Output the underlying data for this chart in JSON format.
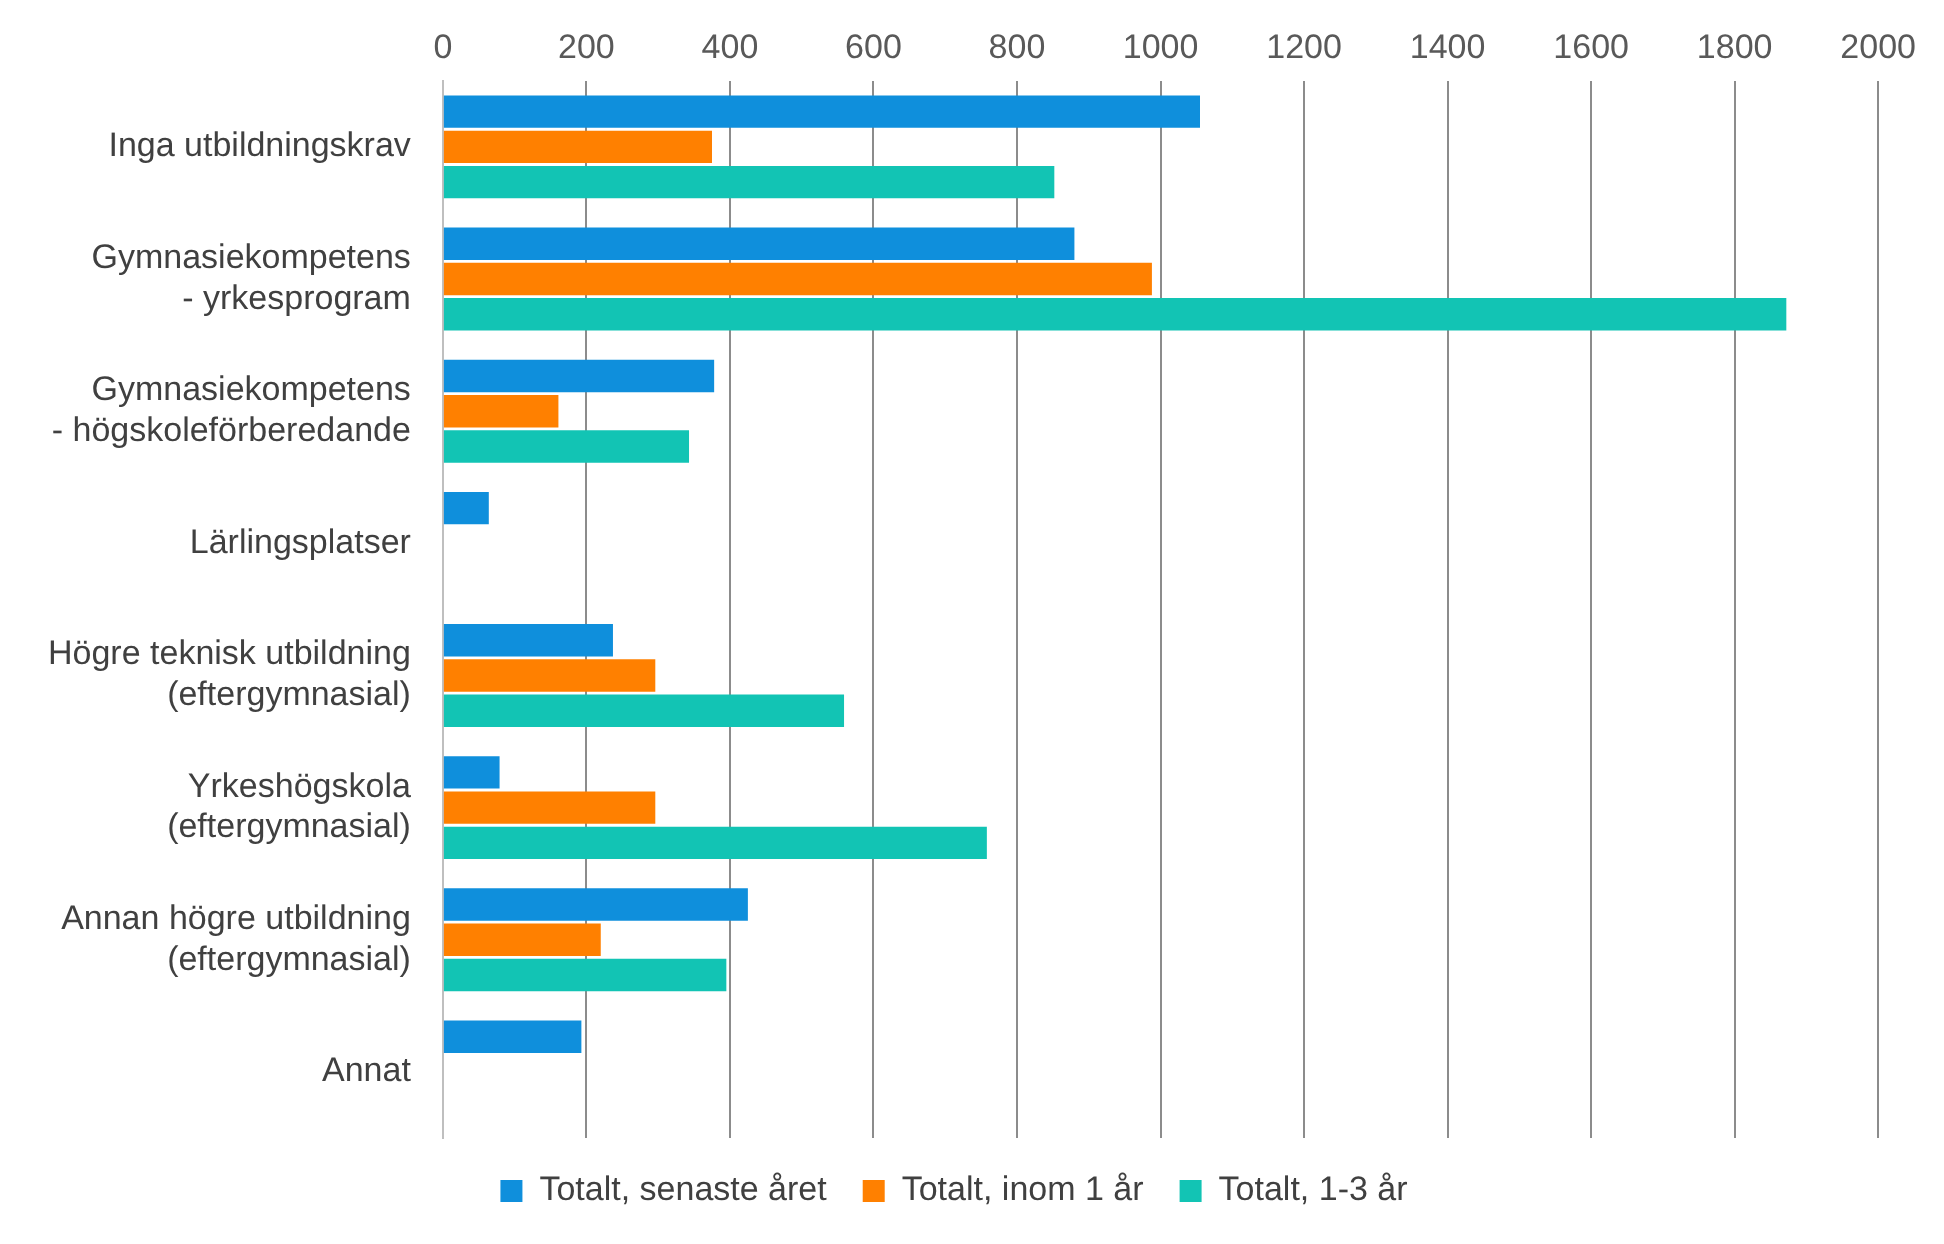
{
  "chart_data": {
    "type": "bar",
    "orientation": "horizontal",
    "categories": [
      "Inga utbildningskrav",
      "Gymnasiekompetens\n- yrkesprogram",
      "Gymnasiekompetens\n- högskoleförberedande",
      "Lärlingsplatser",
      "Högre teknisk utbildning\n(eftergymnasial)",
      "Yrkeshögskola\n(eftergymnasial)",
      "Annan högre utbildning\n(eftergymnasial)",
      "Annat"
    ],
    "series": [
      {
        "name": "Totalt, senaste året",
        "color": "#0f8fdc",
        "values": [
          1055,
          880,
          378,
          64,
          237,
          79,
          425,
          193
        ]
      },
      {
        "name": "Totalt, inom 1 år",
        "color": "#ff8000",
        "values": [
          375,
          988,
          161,
          null,
          296,
          296,
          220,
          null
        ]
      },
      {
        "name": "Totalt, 1-3 år",
        "color": "#12c4b4",
        "values": [
          852,
          1872,
          343,
          null,
          559,
          758,
          395,
          null
        ]
      }
    ],
    "xlim": [
      0,
      2000
    ],
    "xticks": [
      0,
      200,
      400,
      600,
      800,
      1000,
      1200,
      1400,
      1600,
      1800,
      2000
    ],
    "grid": "x",
    "legend": "bottom"
  }
}
